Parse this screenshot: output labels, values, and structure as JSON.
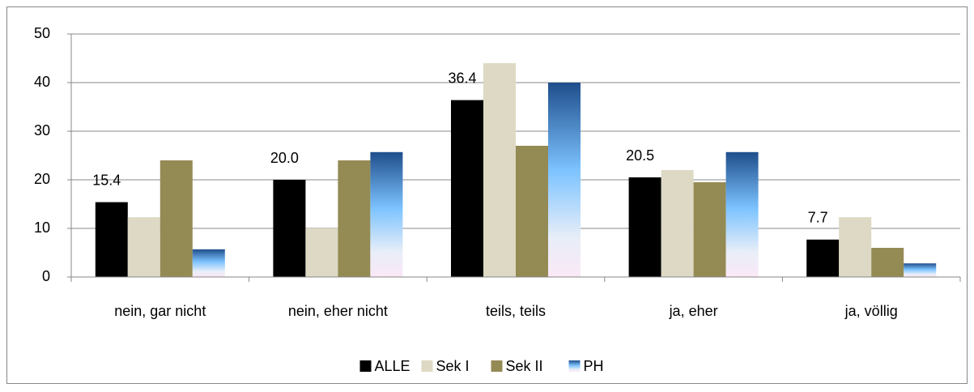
{
  "chart_data": {
    "type": "bar",
    "categories": [
      "nein, gar nicht",
      "nein, eher nicht",
      "teils, teils",
      "ja, eher",
      "ja, völlig"
    ],
    "series": [
      {
        "name": "ALLE",
        "color": "#000000",
        "values": [
          15.4,
          20.0,
          36.4,
          20.5,
          7.7
        ],
        "value_labels": [
          "15.4",
          "20.0",
          "36.4",
          "20.5",
          "7.7"
        ]
      },
      {
        "name": "Sek I",
        "color": "#ddd9c4",
        "values": [
          12.3,
          10.0,
          44.0,
          22.0,
          12.3
        ]
      },
      {
        "name": "Sek II",
        "color": "#948a54",
        "values": [
          24.0,
          24.0,
          27.0,
          19.5,
          6.0
        ]
      },
      {
        "name": "PH",
        "color": "#1f4e8c",
        "gradient": true,
        "values": [
          5.7,
          25.7,
          40.0,
          25.7,
          2.8
        ]
      }
    ],
    "ylim": [
      0,
      50
    ],
    "yticks": [
      0,
      10,
      20,
      30,
      40,
      50
    ],
    "grid": true,
    "legend": "bottom"
  }
}
